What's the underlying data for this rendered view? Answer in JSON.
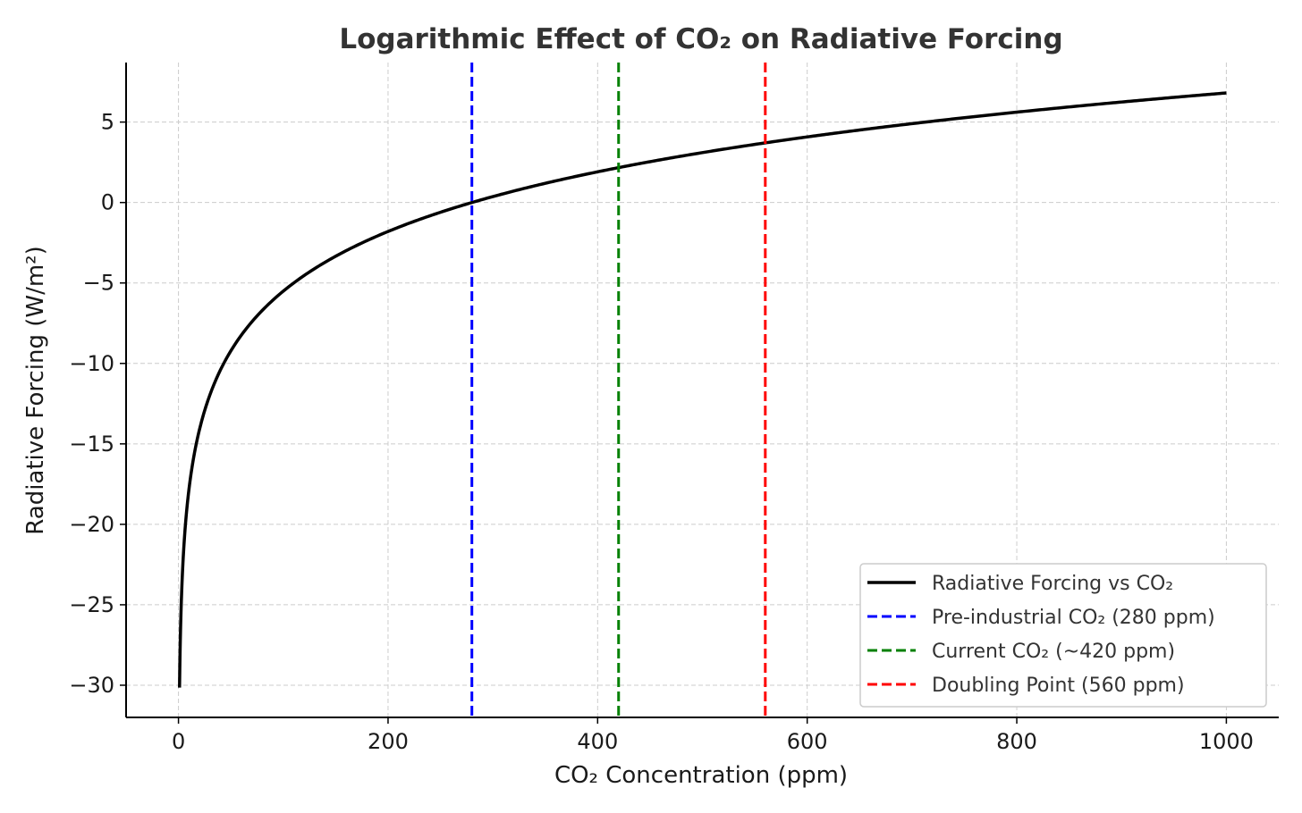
{
  "chart_data": {
    "type": "line",
    "title": "Logarithmic Effect of CO₂ on Radiative Forcing",
    "xlabel": "CO₂ Concentration (ppm)",
    "ylabel": "Radiative Forcing (W/m²)",
    "xlim": [
      -50,
      1050
    ],
    "ylim": [
      -32,
      8.7
    ],
    "xticks": [
      0,
      200,
      400,
      600,
      800,
      1000
    ],
    "xtick_labels": [
      "0",
      "200",
      "400",
      "600",
      "800",
      "1000"
    ],
    "yticks": [
      5,
      0,
      -5,
      -10,
      -15,
      -20,
      -25,
      -30
    ],
    "ytick_labels": [
      "5",
      "0",
      "−5",
      "−10",
      "−15",
      "−20",
      "−25",
      "−30"
    ],
    "grid": true,
    "legend_position": "bottom-right",
    "series": [
      {
        "name": "Radiative Forcing vs CO₂",
        "kind": "curve",
        "color": "#000000",
        "formula": "5.35 * ln(x / 280)",
        "x_range": [
          1,
          1000
        ],
        "points": [
          [
            1,
            -30.15
          ],
          [
            2,
            -26.44
          ],
          [
            5,
            -21.54
          ],
          [
            10,
            -17.83
          ],
          [
            20,
            -14.12
          ],
          [
            40,
            -10.41
          ],
          [
            60,
            -8.24
          ],
          [
            80,
            -6.7
          ],
          [
            100,
            -5.51
          ],
          [
            150,
            -3.34
          ],
          [
            200,
            -1.8
          ],
          [
            250,
            -0.61
          ],
          [
            280,
            0.0
          ],
          [
            300,
            0.37
          ],
          [
            350,
            1.19
          ],
          [
            400,
            1.91
          ],
          [
            420,
            2.17
          ],
          [
            450,
            2.54
          ],
          [
            500,
            3.1
          ],
          [
            560,
            3.71
          ],
          [
            600,
            4.08
          ],
          [
            700,
            4.9
          ],
          [
            800,
            5.62
          ],
          [
            900,
            6.25
          ],
          [
            1000,
            6.81
          ]
        ]
      },
      {
        "name": "Pre-industrial CO₂ (280 ppm)",
        "kind": "vline",
        "x": 280,
        "color": "#0000ff"
      },
      {
        "name": "Current CO₂ (~420 ppm)",
        "kind": "vline",
        "x": 420,
        "color": "#008000"
      },
      {
        "name": "Doubling Point (560 ppm)",
        "kind": "vline",
        "x": 560,
        "color": "#ff0000"
      }
    ]
  }
}
